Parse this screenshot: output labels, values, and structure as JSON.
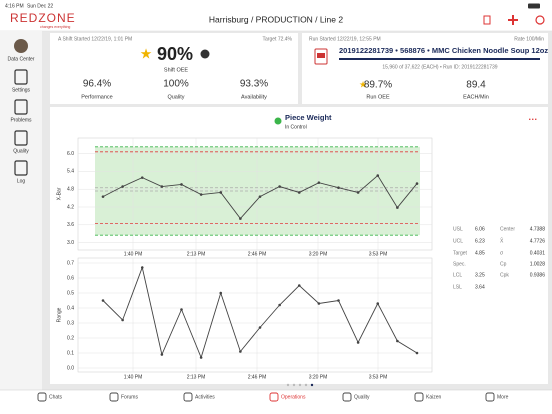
{
  "status_bar": {
    "time": "4:16 PM",
    "date": "Sun Dec 22"
  },
  "logo": {
    "name": "REDZONE",
    "tagline": "changes everything"
  },
  "header": {
    "title": "Harrisburg / PRODUCTION / Line 2"
  },
  "sidebar": [
    "Data Center",
    "Settings",
    "Problems",
    "Quality",
    "Log"
  ],
  "shift": {
    "started": "A Shift Started 12/22/19, 1:01 PM",
    "target": "Target 72.4%",
    "oee": "90%",
    "oee_label": "Shift OEE",
    "metrics": [
      {
        "value": "96.4%",
        "label": "Performance"
      },
      {
        "value": "100%",
        "label": "Quality"
      },
      {
        "value": "93.3%",
        "label": "Availability"
      }
    ]
  },
  "run": {
    "started": "Run Started 12/22/19, 12:55 PM",
    "rate": "Rate 100/Min",
    "product": "2019122281739 • 568876 • MMC Chicken Noodle Soup 12oz",
    "progress": "15,960 of 37,622 (EACH) • Run ID: 2019122281739",
    "metrics": [
      {
        "value": "89.7%",
        "label": "Run OEE"
      },
      {
        "value": "89.4",
        "label": "EACH/Min"
      }
    ]
  },
  "spc": {
    "title": "Piece Weight",
    "status": "In Control",
    "time_labels": [
      "1:40 PM",
      "2:13 PM",
      "2:46 PM",
      "3:20 PM",
      "3:53 PM"
    ],
    "xbar_chart": {
      "type": "line",
      "y_label": "X-Bar",
      "color": "#444444",
      "ylim": [
        2.75,
        6.55
      ],
      "yticks": [
        {
          "value": 3,
          "label": "3.0"
        },
        3.6,
        4.2,
        4.8,
        5.4,
        {
          "value": 6,
          "label": "6.0"
        }
      ],
      "values": [
        4.55,
        4.89,
        5.19,
        4.89,
        4.96,
        4.62,
        4.69,
        3.81,
        4.55,
        4.89,
        4.69,
        5.02,
        4.85,
        4.69,
        5.26,
        4.18,
        4.99
      ]
    },
    "range_chart": {
      "type": "line",
      "y_label": "Range",
      "color": "#444444",
      "ylim": [
        0,
        0.7
      ],
      "yticks": [
        {
          "value": 0,
          "label": "0.0"
        },
        0.1,
        0.2,
        0.3,
        0.4,
        0.5,
        0.6,
        0.7
      ],
      "values": [
        0.45,
        0.32,
        0.67,
        0.09,
        0.39,
        0.07,
        0.5,
        0.11,
        0.27,
        0.42,
        0.55,
        0.43,
        0.45,
        0.17,
        0.43,
        0.18,
        0.1
      ]
    },
    "stats": {
      "left": [
        {
          "label": "USL",
          "value": 6.06
        },
        {
          "label": "UCL",
          "value": 6.23
        },
        {
          "label": "Target",
          "value": 4.85
        },
        {
          "label": "Spec."
        },
        {
          "label": "LCL",
          "value": 3.25
        },
        {
          "label": "LSL",
          "value": 3.64
        }
      ],
      "right": [
        {
          "label": "Center",
          "value": 4.7388
        },
        {
          "label": "X̄",
          "value": 4.7726
        },
        {
          "label": "σ",
          "value": 0.4031
        },
        {
          "label": "Cp",
          "value": 1.0028
        },
        {
          "label": "Cpk",
          "value": 0.9386
        }
      ]
    }
  },
  "tabs": [
    "Chats",
    "Forums",
    "Activities",
    "Operations",
    "Quality",
    "Kaizen",
    "More"
  ]
}
